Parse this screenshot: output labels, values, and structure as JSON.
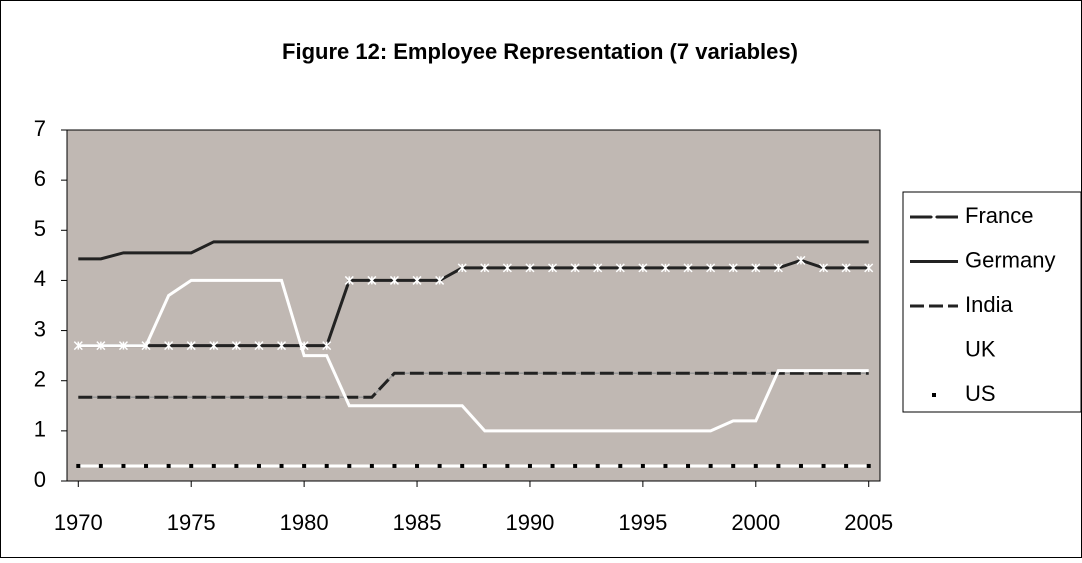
{
  "chart_data": {
    "type": "line",
    "title": "Figure 12: Employee Representation (7 variables)",
    "x": [
      1970,
      1971,
      1972,
      1973,
      1974,
      1975,
      1976,
      1977,
      1978,
      1979,
      1980,
      1981,
      1982,
      1983,
      1984,
      1985,
      1986,
      1987,
      1988,
      1989,
      1990,
      1991,
      1992,
      1993,
      1994,
      1995,
      1996,
      1997,
      1998,
      1999,
      2000,
      2001,
      2002,
      2003,
      2004,
      2005
    ],
    "xlim": [
      1969.5,
      2005.5
    ],
    "xticks": [
      1970,
      1975,
      1980,
      1985,
      1990,
      1995,
      2000,
      2005
    ],
    "ylim": [
      0,
      7
    ],
    "yticks": [
      0,
      1,
      2,
      3,
      4,
      5,
      6,
      7
    ],
    "legend": "right",
    "background": "#c0b8b3",
    "series": [
      {
        "name": "France",
        "color": "#222222",
        "marker": "x",
        "dash": "solid",
        "values": [
          2.7,
          2.7,
          2.7,
          2.7,
          2.7,
          2.7,
          2.7,
          2.7,
          2.7,
          2.7,
          2.7,
          2.7,
          4.0,
          4.0,
          4.0,
          4.0,
          4.0,
          4.25,
          4.25,
          4.25,
          4.25,
          4.25,
          4.25,
          4.25,
          4.25,
          4.25,
          4.25,
          4.25,
          4.25,
          4.25,
          4.25,
          4.25,
          4.4,
          4.25,
          4.25,
          4.25
        ]
      },
      {
        "name": "Germany",
        "color": "#222222",
        "marker": "none",
        "dash": "solid",
        "values": [
          4.43,
          4.43,
          4.55,
          4.55,
          4.55,
          4.55,
          4.77,
          4.77,
          4.77,
          4.77,
          4.77,
          4.77,
          4.77,
          4.77,
          4.77,
          4.77,
          4.77,
          4.77,
          4.77,
          4.77,
          4.77,
          4.77,
          4.77,
          4.77,
          4.77,
          4.77,
          4.77,
          4.77,
          4.77,
          4.77,
          4.77,
          4.77,
          4.77,
          4.77,
          4.77,
          4.77
        ]
      },
      {
        "name": "India",
        "color": "#222222",
        "marker": "none",
        "dash": "dashed",
        "values": [
          1.67,
          1.67,
          1.67,
          1.67,
          1.67,
          1.67,
          1.67,
          1.67,
          1.67,
          1.67,
          1.67,
          1.67,
          1.67,
          1.67,
          2.15,
          2.15,
          2.15,
          2.15,
          2.15,
          2.15,
          2.15,
          2.15,
          2.15,
          2.15,
          2.15,
          2.15,
          2.15,
          2.15,
          2.15,
          2.15,
          2.15,
          2.15,
          2.15,
          2.15,
          2.15,
          2.15
        ]
      },
      {
        "name": "UK",
        "color": "#ffffff",
        "marker": "none",
        "dash": "solid",
        "values": [
          2.7,
          2.7,
          2.7,
          2.7,
          3.7,
          4.0,
          4.0,
          4.0,
          4.0,
          4.0,
          2.5,
          2.5,
          1.5,
          1.5,
          1.5,
          1.5,
          1.5,
          1.5,
          1.0,
          1.0,
          1.0,
          1.0,
          1.0,
          1.0,
          1.0,
          1.0,
          1.0,
          1.0,
          1.0,
          1.2,
          1.2,
          2.2,
          2.2,
          2.2,
          2.2,
          2.2
        ]
      },
      {
        "name": "US",
        "color": "#ffffff",
        "marker": "dot",
        "dash": "solid",
        "values": [
          0.3,
          0.3,
          0.3,
          0.3,
          0.3,
          0.3,
          0.3,
          0.3,
          0.3,
          0.3,
          0.3,
          0.3,
          0.3,
          0.3,
          0.3,
          0.3,
          0.3,
          0.3,
          0.3,
          0.3,
          0.3,
          0.3,
          0.3,
          0.3,
          0.3,
          0.3,
          0.3,
          0.3,
          0.3,
          0.3,
          0.3,
          0.3,
          0.3,
          0.3,
          0.3,
          0.3
        ]
      }
    ]
  }
}
